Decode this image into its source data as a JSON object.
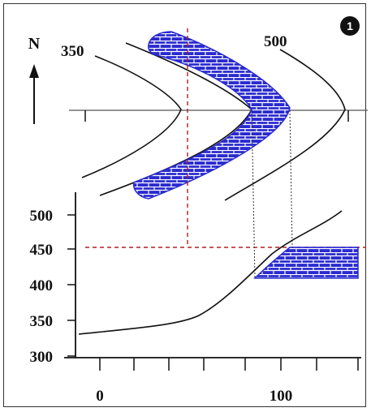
{
  "badge": "1",
  "north_label": "N",
  "contours": [
    {
      "label": "350"
    },
    {
      "label": "500"
    }
  ],
  "y_axis": {
    "ticks": [
      "500",
      "450",
      "400",
      "350",
      "300"
    ]
  },
  "x_axis": {
    "ticks": [
      "0",
      "100"
    ]
  },
  "colors": {
    "formation_fill": "#2a2ad0",
    "formation_line": "#ffffff",
    "guide_red": "#b02020",
    "ink": "#111111"
  }
}
